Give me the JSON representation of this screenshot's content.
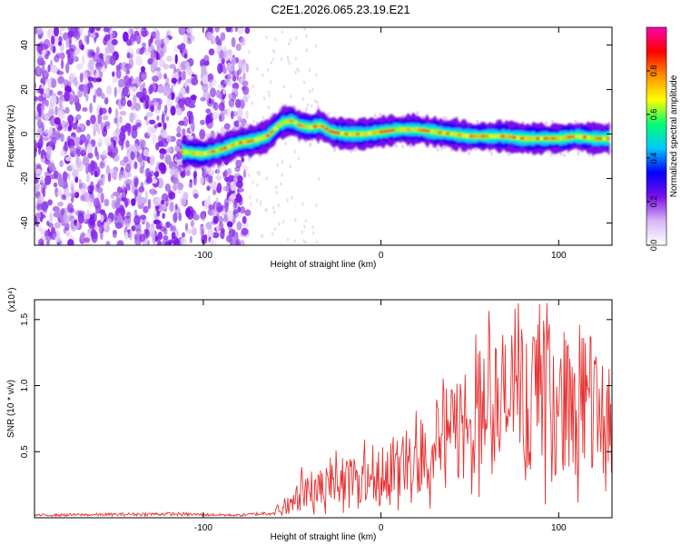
{
  "page": {
    "title": "C2E1.2026.065.23.19.E21"
  },
  "chart_data": [
    {
      "type": "heatmap",
      "title": "C2E1.2026.065.23.19.E21",
      "xlabel": "Height of straight line (km)",
      "ylabel": "Frequency (Hz)",
      "xlim": [
        -195,
        130
      ],
      "ylim": [
        -50,
        48
      ],
      "xticks": [
        -100,
        0,
        100
      ],
      "xtick_labels": [
        "-100",
        "0",
        "100"
      ],
      "yticks": [
        -40,
        -20,
        0,
        20,
        40
      ],
      "ytick_labels": [
        "-40",
        "-20",
        "0",
        "20",
        "40"
      ],
      "ridge": {
        "x": [
          -112,
          -100,
          -90,
          -80,
          -72,
          -64,
          -56,
          -50,
          -46,
          -40,
          -34,
          -28,
          -20,
          -10,
          0,
          10,
          20,
          30,
          40,
          50,
          60,
          70,
          80,
          90,
          100,
          110,
          120,
          130
        ],
        "y": [
          -8,
          -9,
          -7,
          -4,
          -3,
          -1,
          5,
          6,
          4,
          3,
          4,
          1,
          0,
          0,
          1,
          2,
          2,
          1,
          0,
          -1,
          -1,
          -1,
          -2,
          -2,
          -2,
          -1,
          -2,
          -2
        ]
      },
      "colorbar": {
        "label": "Normalized spectral amplitude",
        "range": [
          0,
          1
        ],
        "ticks": [
          0.0,
          0.2,
          0.4,
          0.6,
          0.8
        ],
        "tick_labels": [
          "0.0",
          "0.2",
          "0.4",
          "0.6",
          "0.8"
        ],
        "colors": [
          "#ffffff",
          "#d8b8f5",
          "#7a10e8",
          "#0000ff",
          "#00c8ff",
          "#00ff70",
          "#ffff00",
          "#ff9000",
          "#ff0000",
          "#ff00b0"
        ]
      },
      "noise_region_km": [
        -195,
        -75
      ],
      "signal_color": "#ff3030"
    },
    {
      "type": "line",
      "xlabel": "Height of straight line (km)",
      "ylabel": "SNR (10 * v/v)",
      "scale_label": "(x10⁴)",
      "xlim": [
        -195,
        130
      ],
      "ylim": [
        0,
        1.65
      ],
      "xticks": [
        -100,
        0,
        100
      ],
      "xtick_labels": [
        "-100",
        "0",
        "100"
      ],
      "yticks": [
        0.5,
        1.0,
        1.5
      ],
      "ytick_labels": [
        "0.5",
        "1.0",
        "1.5"
      ],
      "color": "#e83030",
      "envelope": {
        "x": [
          -195,
          -120,
          -80,
          -60,
          -50,
          -45,
          -40,
          -30,
          -20,
          -10,
          0,
          10,
          20,
          30,
          40,
          50,
          60,
          70,
          80,
          90,
          100,
          110,
          120,
          130
        ],
        "y": [
          0.02,
          0.03,
          0.02,
          0.04,
          0.15,
          0.25,
          0.2,
          0.25,
          0.3,
          0.33,
          0.36,
          0.4,
          0.48,
          0.55,
          0.65,
          0.78,
          0.85,
          0.9,
          0.95,
          0.95,
          0.9,
          0.9,
          0.85,
          0.75
        ]
      }
    }
  ]
}
